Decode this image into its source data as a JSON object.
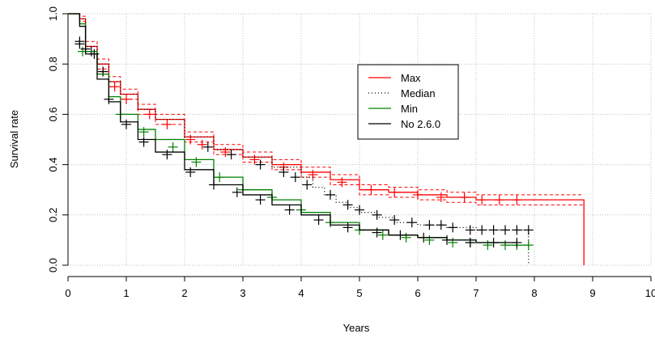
{
  "chart_data": {
    "type": "line",
    "title": "",
    "xlabel": "Years",
    "ylabel": "Survival rate",
    "xlim": [
      0,
      10
    ],
    "ylim": [
      0,
      1
    ],
    "x_ticks": [
      0,
      1,
      2,
      3,
      4,
      5,
      6,
      7,
      8,
      9,
      10
    ],
    "x_tick_labels": [
      "0",
      "1",
      "2",
      "3",
      "4",
      "5",
      "6",
      "7",
      "8",
      "9",
      "10"
    ],
    "y_ticks": [
      0.0,
      0.2,
      0.4,
      0.6,
      0.8,
      1.0
    ],
    "y_tick_labels": [
      "0.0",
      "0.2",
      "0.4",
      "0.6",
      "0.8",
      "1.0"
    ],
    "grid": true,
    "legend_position": "top-right-inside",
    "colors": {
      "max": "#ff0000",
      "median": "#000000",
      "min": "#008000",
      "no260": "#000000",
      "grid": "#bfbfbf"
    },
    "series": [
      {
        "name": "Max",
        "style": "solid",
        "color": "#ff0000",
        "confidence_band": true,
        "x": [
          0,
          0.2,
          0.3,
          0.5,
          0.7,
          0.9,
          1.2,
          1.5,
          2.0,
          2.5,
          3.0,
          3.5,
          4.0,
          4.5,
          5.0,
          5.5,
          6.0,
          6.5,
          7.0,
          7.5,
          8.0,
          8.5,
          8.85,
          8.85
        ],
        "y": [
          1.0,
          0.98,
          0.87,
          0.8,
          0.73,
          0.68,
          0.62,
          0.58,
          0.51,
          0.46,
          0.43,
          0.4,
          0.37,
          0.34,
          0.3,
          0.29,
          0.28,
          0.27,
          0.26,
          0.26,
          0.26,
          0.26,
          0.26,
          0.0
        ],
        "ci_upper": [
          1.0,
          0.99,
          0.89,
          0.82,
          0.75,
          0.7,
          0.64,
          0.6,
          0.53,
          0.48,
          0.45,
          0.42,
          0.39,
          0.36,
          0.32,
          0.31,
          0.3,
          0.29,
          0.28,
          0.28,
          0.28,
          0.28,
          0.28
        ],
        "ci_lower": [
          1.0,
          0.97,
          0.85,
          0.78,
          0.71,
          0.66,
          0.6,
          0.56,
          0.49,
          0.44,
          0.41,
          0.38,
          0.35,
          0.32,
          0.28,
          0.27,
          0.26,
          0.25,
          0.24,
          0.24,
          0.24,
          0.24,
          0.24
        ],
        "censor_marks_x": [
          0.6,
          0.8,
          1.0,
          1.4,
          1.7,
          2.1,
          2.3,
          2.7,
          3.2,
          3.7,
          4.2,
          4.7,
          5.2,
          5.6,
          6.0,
          6.4,
          6.8,
          7.1,
          7.4,
          7.7
        ],
        "censor_marks_y": [
          0.77,
          0.71,
          0.66,
          0.6,
          0.56,
          0.5,
          0.48,
          0.45,
          0.42,
          0.39,
          0.36,
          0.33,
          0.3,
          0.29,
          0.28,
          0.27,
          0.27,
          0.26,
          0.26,
          0.26
        ]
      },
      {
        "name": "Median",
        "style": "dotted",
        "color": "#000000",
        "x": [
          0,
          0.2,
          0.3,
          0.5,
          0.7,
          0.9,
          1.2,
          1.5,
          2.0,
          2.5,
          3.0,
          3.5,
          4.0,
          4.2,
          4.4,
          4.6,
          4.8,
          5.0,
          5.3,
          5.6,
          6.0,
          6.5,
          7.0,
          7.5,
          7.9,
          7.9
        ],
        "y": [
          1.0,
          0.98,
          0.87,
          0.8,
          0.73,
          0.68,
          0.62,
          0.58,
          0.51,
          0.46,
          0.43,
          0.39,
          0.35,
          0.31,
          0.28,
          0.25,
          0.23,
          0.21,
          0.19,
          0.17,
          0.16,
          0.15,
          0.14,
          0.14,
          0.14,
          0.0
        ],
        "censor_marks_x": [
          0.2,
          0.4,
          0.6,
          2.4,
          2.8,
          3.3,
          3.7,
          3.9,
          4.1,
          4.5,
          4.8,
          5.0,
          5.3,
          5.6,
          5.9,
          6.2,
          6.4,
          6.6,
          6.9,
          7.1,
          7.3,
          7.5,
          7.7,
          7.9
        ],
        "censor_marks_y": [
          0.88,
          0.85,
          0.77,
          0.47,
          0.44,
          0.4,
          0.37,
          0.35,
          0.32,
          0.28,
          0.24,
          0.22,
          0.2,
          0.18,
          0.17,
          0.16,
          0.16,
          0.15,
          0.14,
          0.14,
          0.14,
          0.14,
          0.14,
          0.14
        ]
      },
      {
        "name": "Min",
        "style": "solid",
        "color": "#008000",
        "x": [
          0,
          0.2,
          0.3,
          0.5,
          0.7,
          0.9,
          1.2,
          1.5,
          2.0,
          2.5,
          3.0,
          3.5,
          4.0,
          4.5,
          5.0,
          5.5,
          6.0,
          6.5,
          7.0,
          7.5,
          7.9
        ],
        "y": [
          1.0,
          0.96,
          0.85,
          0.76,
          0.67,
          0.6,
          0.54,
          0.5,
          0.42,
          0.35,
          0.3,
          0.26,
          0.21,
          0.17,
          0.14,
          0.12,
          0.11,
          0.1,
          0.09,
          0.08,
          0.08
        ],
        "censor_marks_x": [
          0.25,
          0.9,
          1.3,
          1.8,
          2.2,
          2.6,
          3.0,
          3.5,
          4.0,
          4.5,
          5.0,
          5.4,
          5.8,
          6.2,
          6.6,
          6.9,
          7.2,
          7.5,
          7.7,
          7.9
        ],
        "censor_marks_y": [
          0.85,
          0.6,
          0.53,
          0.47,
          0.41,
          0.35,
          0.3,
          0.27,
          0.22,
          0.17,
          0.14,
          0.12,
          0.11,
          0.1,
          0.09,
          0.09,
          0.08,
          0.08,
          0.08,
          0.08
        ]
      },
      {
        "name": "No 2.6.0",
        "style": "solid",
        "color": "#000000",
        "x": [
          0,
          0.2,
          0.3,
          0.5,
          0.7,
          0.9,
          1.2,
          1.5,
          2.0,
          2.5,
          3.0,
          3.5,
          4.0,
          4.5,
          5.0,
          5.5,
          6.0,
          6.5,
          7.0,
          7.5,
          7.7
        ],
        "y": [
          1.0,
          0.95,
          0.84,
          0.74,
          0.65,
          0.57,
          0.5,
          0.45,
          0.38,
          0.32,
          0.28,
          0.24,
          0.2,
          0.16,
          0.14,
          0.12,
          0.11,
          0.1,
          0.09,
          0.09,
          0.09
        ],
        "censor_marks_x": [
          0.2,
          0.3,
          0.45,
          0.7,
          1.0,
          1.3,
          1.7,
          2.1,
          2.5,
          2.9,
          3.3,
          3.8,
          4.3,
          4.8,
          5.3,
          5.7,
          6.1,
          6.5,
          6.9,
          7.3,
          7.7
        ],
        "censor_marks_y": [
          0.89,
          0.86,
          0.84,
          0.66,
          0.56,
          0.49,
          0.44,
          0.37,
          0.32,
          0.29,
          0.26,
          0.22,
          0.18,
          0.15,
          0.13,
          0.12,
          0.11,
          0.1,
          0.09,
          0.09,
          0.09
        ]
      }
    ],
    "legend": [
      {
        "label": "Max",
        "series": 0
      },
      {
        "label": "Median",
        "series": 1
      },
      {
        "label": "Min",
        "series": 2
      },
      {
        "label": "No 2.6.0",
        "series": 3
      }
    ]
  }
}
